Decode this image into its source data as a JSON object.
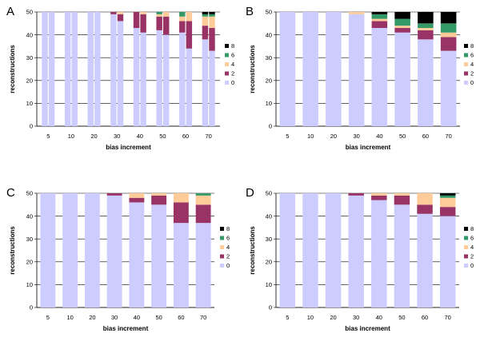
{
  "figure": {
    "legend_keys": [
      "8",
      "6",
      "4",
      "2",
      "0"
    ],
    "colors": {
      "0": "#ccccff",
      "2": "#993366",
      "4": "#ffcc99",
      "6": "#339966",
      "8": "#000000"
    }
  },
  "chart_data": [
    {
      "panel": "A",
      "type": "bar",
      "stacked": true,
      "grouped": true,
      "ylabel": "reconstructions",
      "xlabel": "bias increment",
      "ylim": [
        0,
        50
      ],
      "yticks": [
        0,
        10,
        20,
        30,
        40,
        50
      ],
      "categories": [
        "5",
        "10",
        "20",
        "30",
        "40",
        "50",
        "60",
        "70"
      ],
      "bars_per_category": 2,
      "series_order": [
        "0",
        "2",
        "4",
        "6",
        "8"
      ],
      "bars": [
        {
          "0": 50,
          "2": 0,
          "4": 0,
          "6": 0,
          "8": 0
        },
        {
          "0": 50,
          "2": 0,
          "4": 0,
          "6": 0,
          "8": 0
        },
        {
          "0": 50,
          "2": 0,
          "4": 0,
          "6": 0,
          "8": 0
        },
        {
          "0": 50,
          "2": 0,
          "4": 0,
          "6": 0,
          "8": 0
        },
        {
          "0": 50,
          "2": 0,
          "4": 0,
          "6": 0,
          "8": 0
        },
        {
          "0": 50,
          "2": 0,
          "4": 0,
          "6": 0,
          "8": 0
        },
        {
          "0": 49,
          "2": 1,
          "4": 0,
          "6": 0,
          "8": 0
        },
        {
          "0": 46,
          "2": 3,
          "4": 1,
          "6": 0,
          "8": 0
        },
        {
          "0": 43,
          "2": 7,
          "4": 0,
          "6": 0,
          "8": 0
        },
        {
          "0": 41,
          "2": 8,
          "4": 1,
          "6": 0,
          "8": 0
        },
        {
          "0": 42,
          "2": 6,
          "4": 1,
          "6": 1,
          "8": 0
        },
        {
          "0": 40,
          "2": 8,
          "4": 2,
          "6": 0,
          "8": 0
        },
        {
          "0": 41,
          "2": 5,
          "4": 2,
          "6": 2,
          "8": 0
        },
        {
          "0": 34,
          "2": 12,
          "4": 4,
          "6": 0,
          "8": 0
        },
        {
          "0": 38,
          "2": 6,
          "4": 4,
          "6": 1,
          "8": 1
        },
        {
          "0": 33,
          "2": 10,
          "4": 5,
          "6": 1,
          "8": 1
        }
      ]
    },
    {
      "panel": "B",
      "type": "bar",
      "stacked": true,
      "ylabel": "reconstructions",
      "xlabel": "bias increment",
      "ylim": [
        0,
        50
      ],
      "yticks": [
        0,
        10,
        20,
        30,
        40,
        50
      ],
      "categories": [
        "5",
        "10",
        "20",
        "30",
        "40",
        "50",
        "60",
        "70"
      ],
      "series": [
        {
          "name": "0",
          "values": [
            50,
            50,
            50,
            49,
            43,
            41,
            38,
            33
          ]
        },
        {
          "name": "2",
          "values": [
            0,
            0,
            0,
            0,
            3,
            2,
            4,
            6
          ]
        },
        {
          "name": "4",
          "values": [
            0,
            0,
            0,
            1,
            1,
            1,
            1,
            2
          ]
        },
        {
          "name": "6",
          "values": [
            0,
            0,
            0,
            0,
            2,
            3,
            2,
            4
          ]
        },
        {
          "name": "8",
          "values": [
            0,
            0,
            0,
            0,
            1,
            3,
            5,
            5
          ]
        }
      ]
    },
    {
      "panel": "C",
      "type": "bar",
      "stacked": true,
      "ylabel": "reconstructions",
      "xlabel": "bias increment",
      "ylim": [
        0,
        50
      ],
      "yticks": [
        0,
        10,
        20,
        30,
        40,
        50
      ],
      "categories": [
        "5",
        "10",
        "20",
        "30",
        "40",
        "50",
        "60",
        "70"
      ],
      "series": [
        {
          "name": "0",
          "values": [
            50,
            50,
            50,
            49,
            46,
            45,
            37,
            37
          ]
        },
        {
          "name": "2",
          "values": [
            0,
            0,
            0,
            1,
            2,
            4,
            9,
            8
          ]
        },
        {
          "name": "4",
          "values": [
            0,
            0,
            0,
            0,
            2,
            1,
            4,
            4
          ]
        },
        {
          "name": "6",
          "values": [
            0,
            0,
            0,
            0,
            0,
            0,
            0,
            1
          ]
        },
        {
          "name": "8",
          "values": [
            0,
            0,
            0,
            0,
            0,
            0,
            0,
            0
          ]
        }
      ]
    },
    {
      "panel": "D",
      "type": "bar",
      "stacked": true,
      "ylabel": "reconstructions",
      "xlabel": "bias increment",
      "ylim": [
        0,
        50
      ],
      "yticks": [
        0,
        10,
        20,
        30,
        40,
        50
      ],
      "categories": [
        "5",
        "10",
        "20",
        "30",
        "40",
        "50",
        "60",
        "70"
      ],
      "series": [
        {
          "name": "0",
          "values": [
            50,
            50,
            50,
            49,
            47,
            45,
            41,
            40
          ]
        },
        {
          "name": "2",
          "values": [
            0,
            0,
            0,
            1,
            2,
            4,
            4,
            4
          ]
        },
        {
          "name": "4",
          "values": [
            0,
            0,
            0,
            0,
            1,
            1,
            5,
            4
          ]
        },
        {
          "name": "6",
          "values": [
            0,
            0,
            0,
            0,
            0,
            0,
            0,
            1
          ]
        },
        {
          "name": "8",
          "values": [
            0,
            0,
            0,
            0,
            0,
            0,
            0,
            1
          ]
        }
      ]
    }
  ]
}
